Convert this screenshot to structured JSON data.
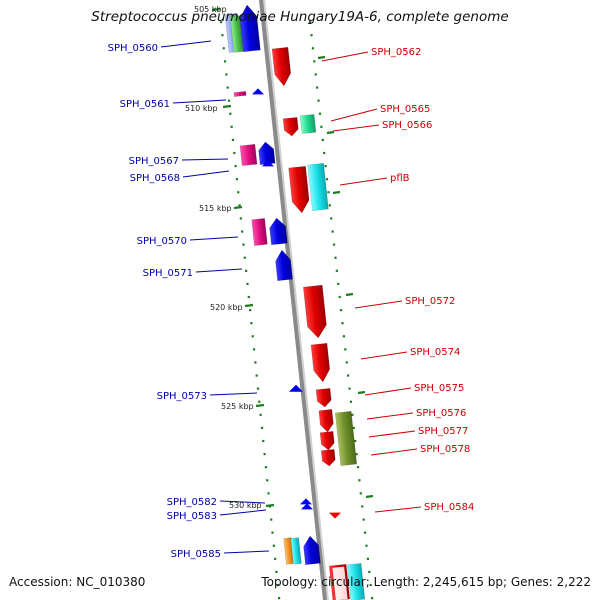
{
  "title": "Streptococcus pneumoniae Hungary19A-6, complete genome",
  "footer": {
    "accession": "Accession: NC_010380",
    "topology": "Topology: circular; Length: 2,245,615 bp; Genes: 2,222"
  },
  "colors": {
    "backbone": "#8a8a8a",
    "tick": "#1e7d1e",
    "left_label": "#0000aa",
    "right_label": "#cc0000"
  },
  "scale_labels": [
    "505 kbp",
    "510 kbp",
    "515 kbp",
    "520 kbp",
    "525 kbp",
    "530 kbp"
  ],
  "left_labels": [
    "SPH_0560",
    "SPH_0561",
    "SPH_0567",
    "SPH_0568",
    "SPH_0570",
    "SPH_0571",
    "SPH_0573",
    "SPH_0582",
    "SPH_0583",
    "SPH_0585"
  ],
  "right_labels": [
    "SPH_0562",
    "SPH_0565",
    "SPH_0566",
    "pflB",
    "SPH_0572",
    "SPH_0574",
    "SPH_0575",
    "SPH_0576",
    "SPH_0577",
    "SPH_0578",
    "SPH_0584"
  ]
}
